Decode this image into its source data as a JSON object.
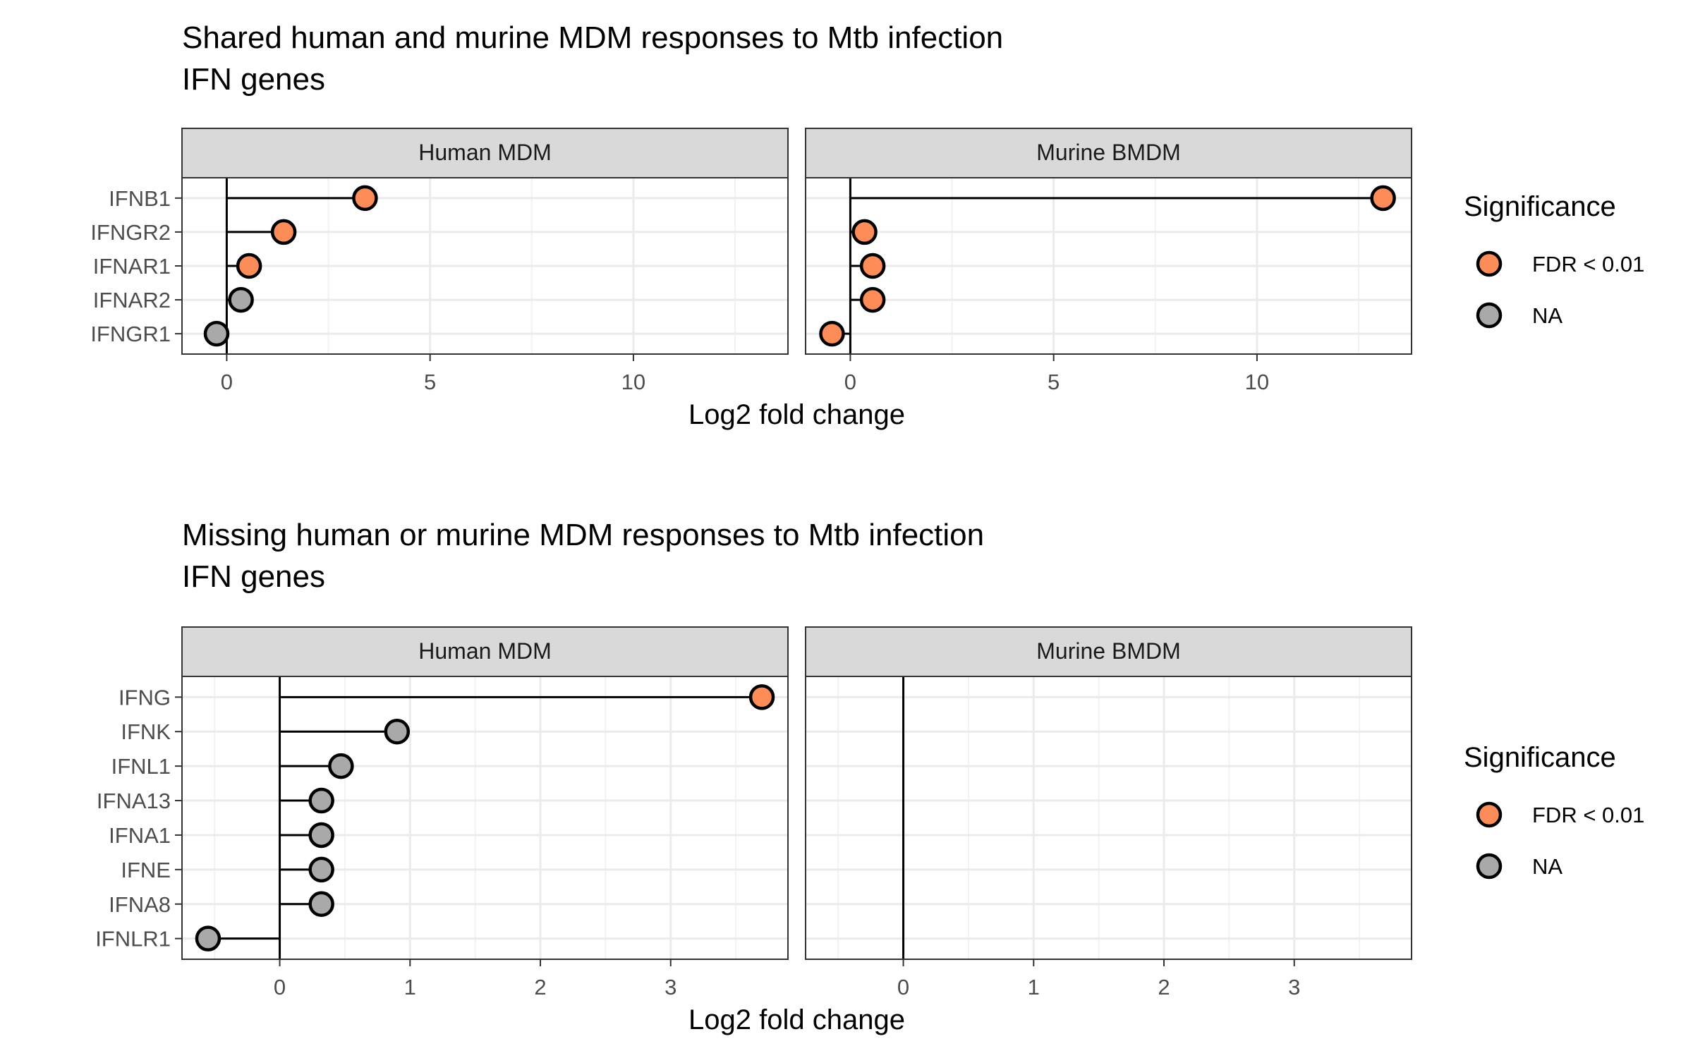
{
  "chart_data": [
    {
      "type": "lollipop",
      "title_line1": "Shared human and murine MDM responses to Mtb infection",
      "title_line2": " IFN genes",
      "xlabel": "Log2 fold change",
      "xlim": [
        -1.1,
        13.8
      ],
      "xticks": [
        0,
        5,
        10
      ],
      "categories": [
        "IFNB1",
        "IFNGR2",
        "IFNAR1",
        "IFNAR2",
        "IFNGR1"
      ],
      "facets": [
        {
          "name": "Human MDM",
          "points": [
            {
              "gene": "IFNB1",
              "value": 3.4,
              "significance": "FDR < 0.01"
            },
            {
              "gene": "IFNGR2",
              "value": 1.4,
              "significance": "FDR < 0.01"
            },
            {
              "gene": "IFNAR1",
              "value": 0.55,
              "significance": "FDR < 0.01"
            },
            {
              "gene": "IFNAR2",
              "value": 0.35,
              "significance": "NA"
            },
            {
              "gene": "IFNGR1",
              "value": -0.25,
              "significance": "NA"
            }
          ]
        },
        {
          "name": "Murine BMDM",
          "points": [
            {
              "gene": "IFNB1",
              "value": 13.1,
              "significance": "FDR < 0.01"
            },
            {
              "gene": "IFNGR2",
              "value": 0.35,
              "significance": "FDR < 0.01"
            },
            {
              "gene": "IFNAR1",
              "value": 0.55,
              "significance": "FDR < 0.01"
            },
            {
              "gene": "IFNAR2",
              "value": 0.55,
              "significance": "FDR < 0.01"
            },
            {
              "gene": "IFNGR1",
              "value": -0.45,
              "significance": "FDR < 0.01"
            }
          ]
        }
      ],
      "legend": {
        "title": "Significance",
        "placement": "right",
        "items": [
          {
            "label": "FDR < 0.01",
            "color": "#FC8D59"
          },
          {
            "label": "NA",
            "color": "#A9A9A9"
          }
        ]
      }
    },
    {
      "type": "lollipop",
      "title_line1": "Missing human or murine MDM responses to Mtb infection",
      "title_line2": " IFN genes",
      "xlabel": "Log2 fold change",
      "xlim": [
        -0.75,
        3.9
      ],
      "xticks": [
        0,
        1,
        2,
        3
      ],
      "categories": [
        "IFNG",
        "IFNK",
        "IFNL1",
        "IFNA13",
        "IFNA1",
        "IFNE",
        "IFNA8",
        "IFNLR1"
      ],
      "facets": [
        {
          "name": "Human MDM",
          "points": [
            {
              "gene": "IFNG",
              "value": 3.7,
              "significance": "FDR < 0.01"
            },
            {
              "gene": "IFNK",
              "value": 0.9,
              "significance": "NA"
            },
            {
              "gene": "IFNL1",
              "value": 0.47,
              "significance": "NA"
            },
            {
              "gene": "IFNA13",
              "value": 0.32,
              "significance": "NA"
            },
            {
              "gene": "IFNA1",
              "value": 0.32,
              "significance": "NA"
            },
            {
              "gene": "IFNE",
              "value": 0.32,
              "significance": "NA"
            },
            {
              "gene": "IFNA8",
              "value": 0.32,
              "significance": "NA"
            },
            {
              "gene": "IFNLR1",
              "value": -0.55,
              "significance": "NA"
            }
          ]
        },
        {
          "name": "Murine BMDM",
          "points": []
        }
      ],
      "legend": {
        "title": "Significance",
        "placement": "right",
        "items": [
          {
            "label": "FDR < 0.01",
            "color": "#FC8D59"
          },
          {
            "label": "NA",
            "color": "#A9A9A9"
          }
        ]
      }
    }
  ]
}
